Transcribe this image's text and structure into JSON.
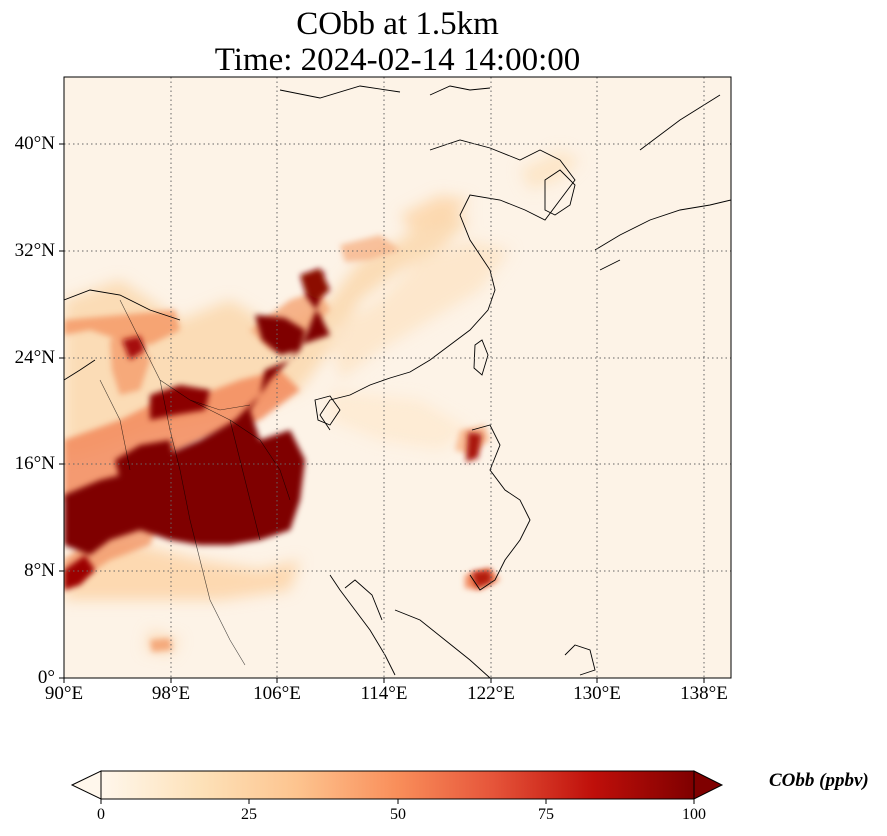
{
  "title_line1": "CObb at 1.5km",
  "title_line2": "Time: 2024-02-14 14:00:00",
  "map": {
    "lon_range": [
      90,
      140
    ],
    "lat_range": [
      0,
      45
    ],
    "grid": "dotted",
    "projection": "PlateCarree"
  },
  "lat_ticks": [
    {
      "label": "0°",
      "value": 0
    },
    {
      "label": "8°N",
      "value": 8
    },
    {
      "label": "16°N",
      "value": 16
    },
    {
      "label": "24°N",
      "value": 24
    },
    {
      "label": "32°N",
      "value": 32
    },
    {
      "label": "40°N",
      "value": 40
    }
  ],
  "lon_ticks": [
    {
      "label": "90°E",
      "value": 90
    },
    {
      "label": "98°E",
      "value": 98
    },
    {
      "label": "106°E",
      "value": 106
    },
    {
      "label": "114°E",
      "value": 114
    },
    {
      "label": "122°E",
      "value": 122
    },
    {
      "label": "130°E",
      "value": 130
    },
    {
      "label": "138°E",
      "value": 138
    }
  ],
  "colorbar": {
    "label": "CObb (ppbv)",
    "colormap": "OrRd",
    "min": 0,
    "max": 100,
    "extend": "both",
    "ticks": [
      {
        "label": "0",
        "value": 0
      },
      {
        "label": "25",
        "value": 25
      },
      {
        "label": "50",
        "value": 50
      },
      {
        "label": "75",
        "value": 75
      },
      {
        "label": "100",
        "value": 100
      }
    ],
    "colors": [
      "#fff7ec",
      "#fde1b8",
      "#fdbb84",
      "#ee6f4a",
      "#c81c11",
      "#9c0000",
      "#7f0000"
    ]
  }
}
